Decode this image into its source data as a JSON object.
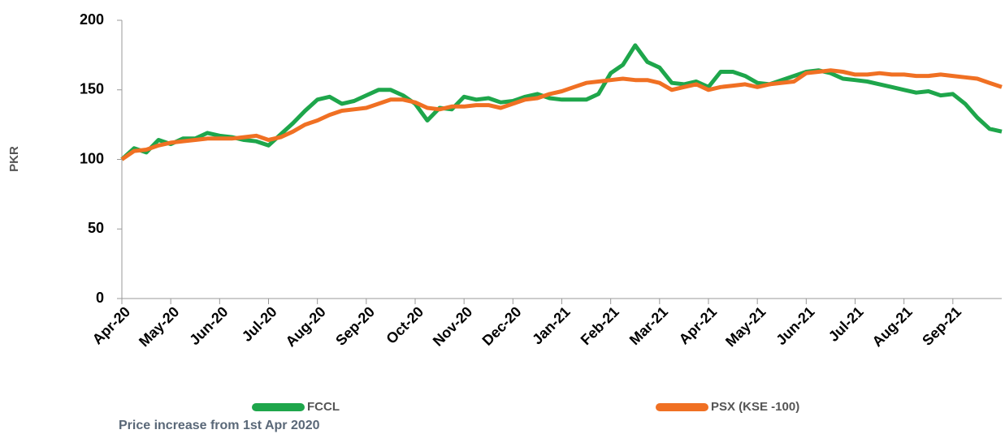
{
  "chart_data": {
    "type": "line",
    "y_label": "PKR",
    "note": "Price increase from 1st Apr 2020",
    "x": [
      0,
      0.25,
      0.5,
      0.75,
      1,
      1.25,
      1.5,
      1.75,
      2,
      2.25,
      2.5,
      2.75,
      3,
      3.25,
      3.5,
      3.75,
      4,
      4.25,
      4.5,
      4.75,
      5,
      5.25,
      5.5,
      5.75,
      6,
      6.25,
      6.5,
      6.75,
      7,
      7.25,
      7.5,
      7.75,
      8,
      8.25,
      8.5,
      8.75,
      9,
      9.25,
      9.5,
      9.75,
      10,
      10.25,
      10.5,
      10.75,
      11,
      11.25,
      11.5,
      11.75,
      12,
      12.25,
      12.5,
      12.75,
      13,
      13.25,
      13.5,
      13.75,
      14,
      14.25,
      14.5,
      14.75,
      15,
      15.25,
      15.5,
      15.75,
      16,
      16.25,
      16.5,
      16.75,
      17,
      17.25,
      17.5,
      17.75,
      18
    ],
    "series": [
      {
        "name": "FCCL",
        "color": "#1ea64b",
        "values": [
          100,
          108,
          105,
          114,
          111,
          115,
          115,
          119,
          117,
          116,
          114,
          113,
          110,
          118,
          126,
          135,
          143,
          145,
          140,
          142,
          146,
          150,
          150,
          146,
          140,
          128,
          137,
          136,
          145,
          143,
          144,
          141,
          142,
          145,
          147,
          144,
          143,
          143,
          143,
          147,
          162,
          168,
          182,
          170,
          166,
          155,
          154,
          156,
          152,
          163,
          163,
          160,
          155,
          154,
          157,
          160,
          163,
          164,
          162,
          158,
          157,
          156,
          154,
          152,
          150,
          148,
          149,
          146,
          147,
          140,
          130,
          122,
          120
        ]
      },
      {
        "name": "PSX (KSE -100)",
        "color": "#f07023",
        "values": [
          100,
          106,
          107,
          110,
          112,
          113,
          114,
          115,
          115,
          115,
          116,
          117,
          114,
          116,
          120,
          125,
          128,
          132,
          135,
          136,
          137,
          140,
          143,
          143,
          141,
          137,
          136,
          138,
          138,
          139,
          139,
          137,
          140,
          143,
          144,
          147,
          149,
          152,
          155,
          156,
          157,
          158,
          157,
          157,
          155,
          150,
          152,
          154,
          150,
          152,
          153,
          154,
          152,
          154,
          155,
          156,
          162,
          163,
          164,
          163,
          161,
          161,
          162,
          161,
          161,
          160,
          160,
          161,
          160,
          159,
          158,
          155,
          152
        ]
      }
    ],
    "xlim": [
      0,
      18
    ],
    "xticks": [
      {
        "value": 0,
        "label": "Apr-20"
      },
      {
        "value": 1,
        "label": "May-20"
      },
      {
        "value": 2,
        "label": "Jun-20"
      },
      {
        "value": 3,
        "label": "Jul-20"
      },
      {
        "value": 4,
        "label": "Aug-20"
      },
      {
        "value": 5,
        "label": "Sep-20"
      },
      {
        "value": 6,
        "label": "Oct-20"
      },
      {
        "value": 7,
        "label": "Nov-20"
      },
      {
        "value": 8,
        "label": "Dec-20"
      },
      {
        "value": 9,
        "label": "Jan-21"
      },
      {
        "value": 10,
        "label": "Feb-21"
      },
      {
        "value": 11,
        "label": "Mar-21"
      },
      {
        "value": 12,
        "label": "Apr-21"
      },
      {
        "value": 13,
        "label": "May-21"
      },
      {
        "value": 14,
        "label": "Jun-21"
      },
      {
        "value": 15,
        "label": "Jul-21"
      },
      {
        "value": 16,
        "label": "Aug-21"
      },
      {
        "value": 17,
        "label": "Sep-21"
      }
    ],
    "ylim": [
      0,
      200
    ],
    "yticks": [
      0,
      50,
      100,
      150,
      200
    ],
    "grid": false
  }
}
